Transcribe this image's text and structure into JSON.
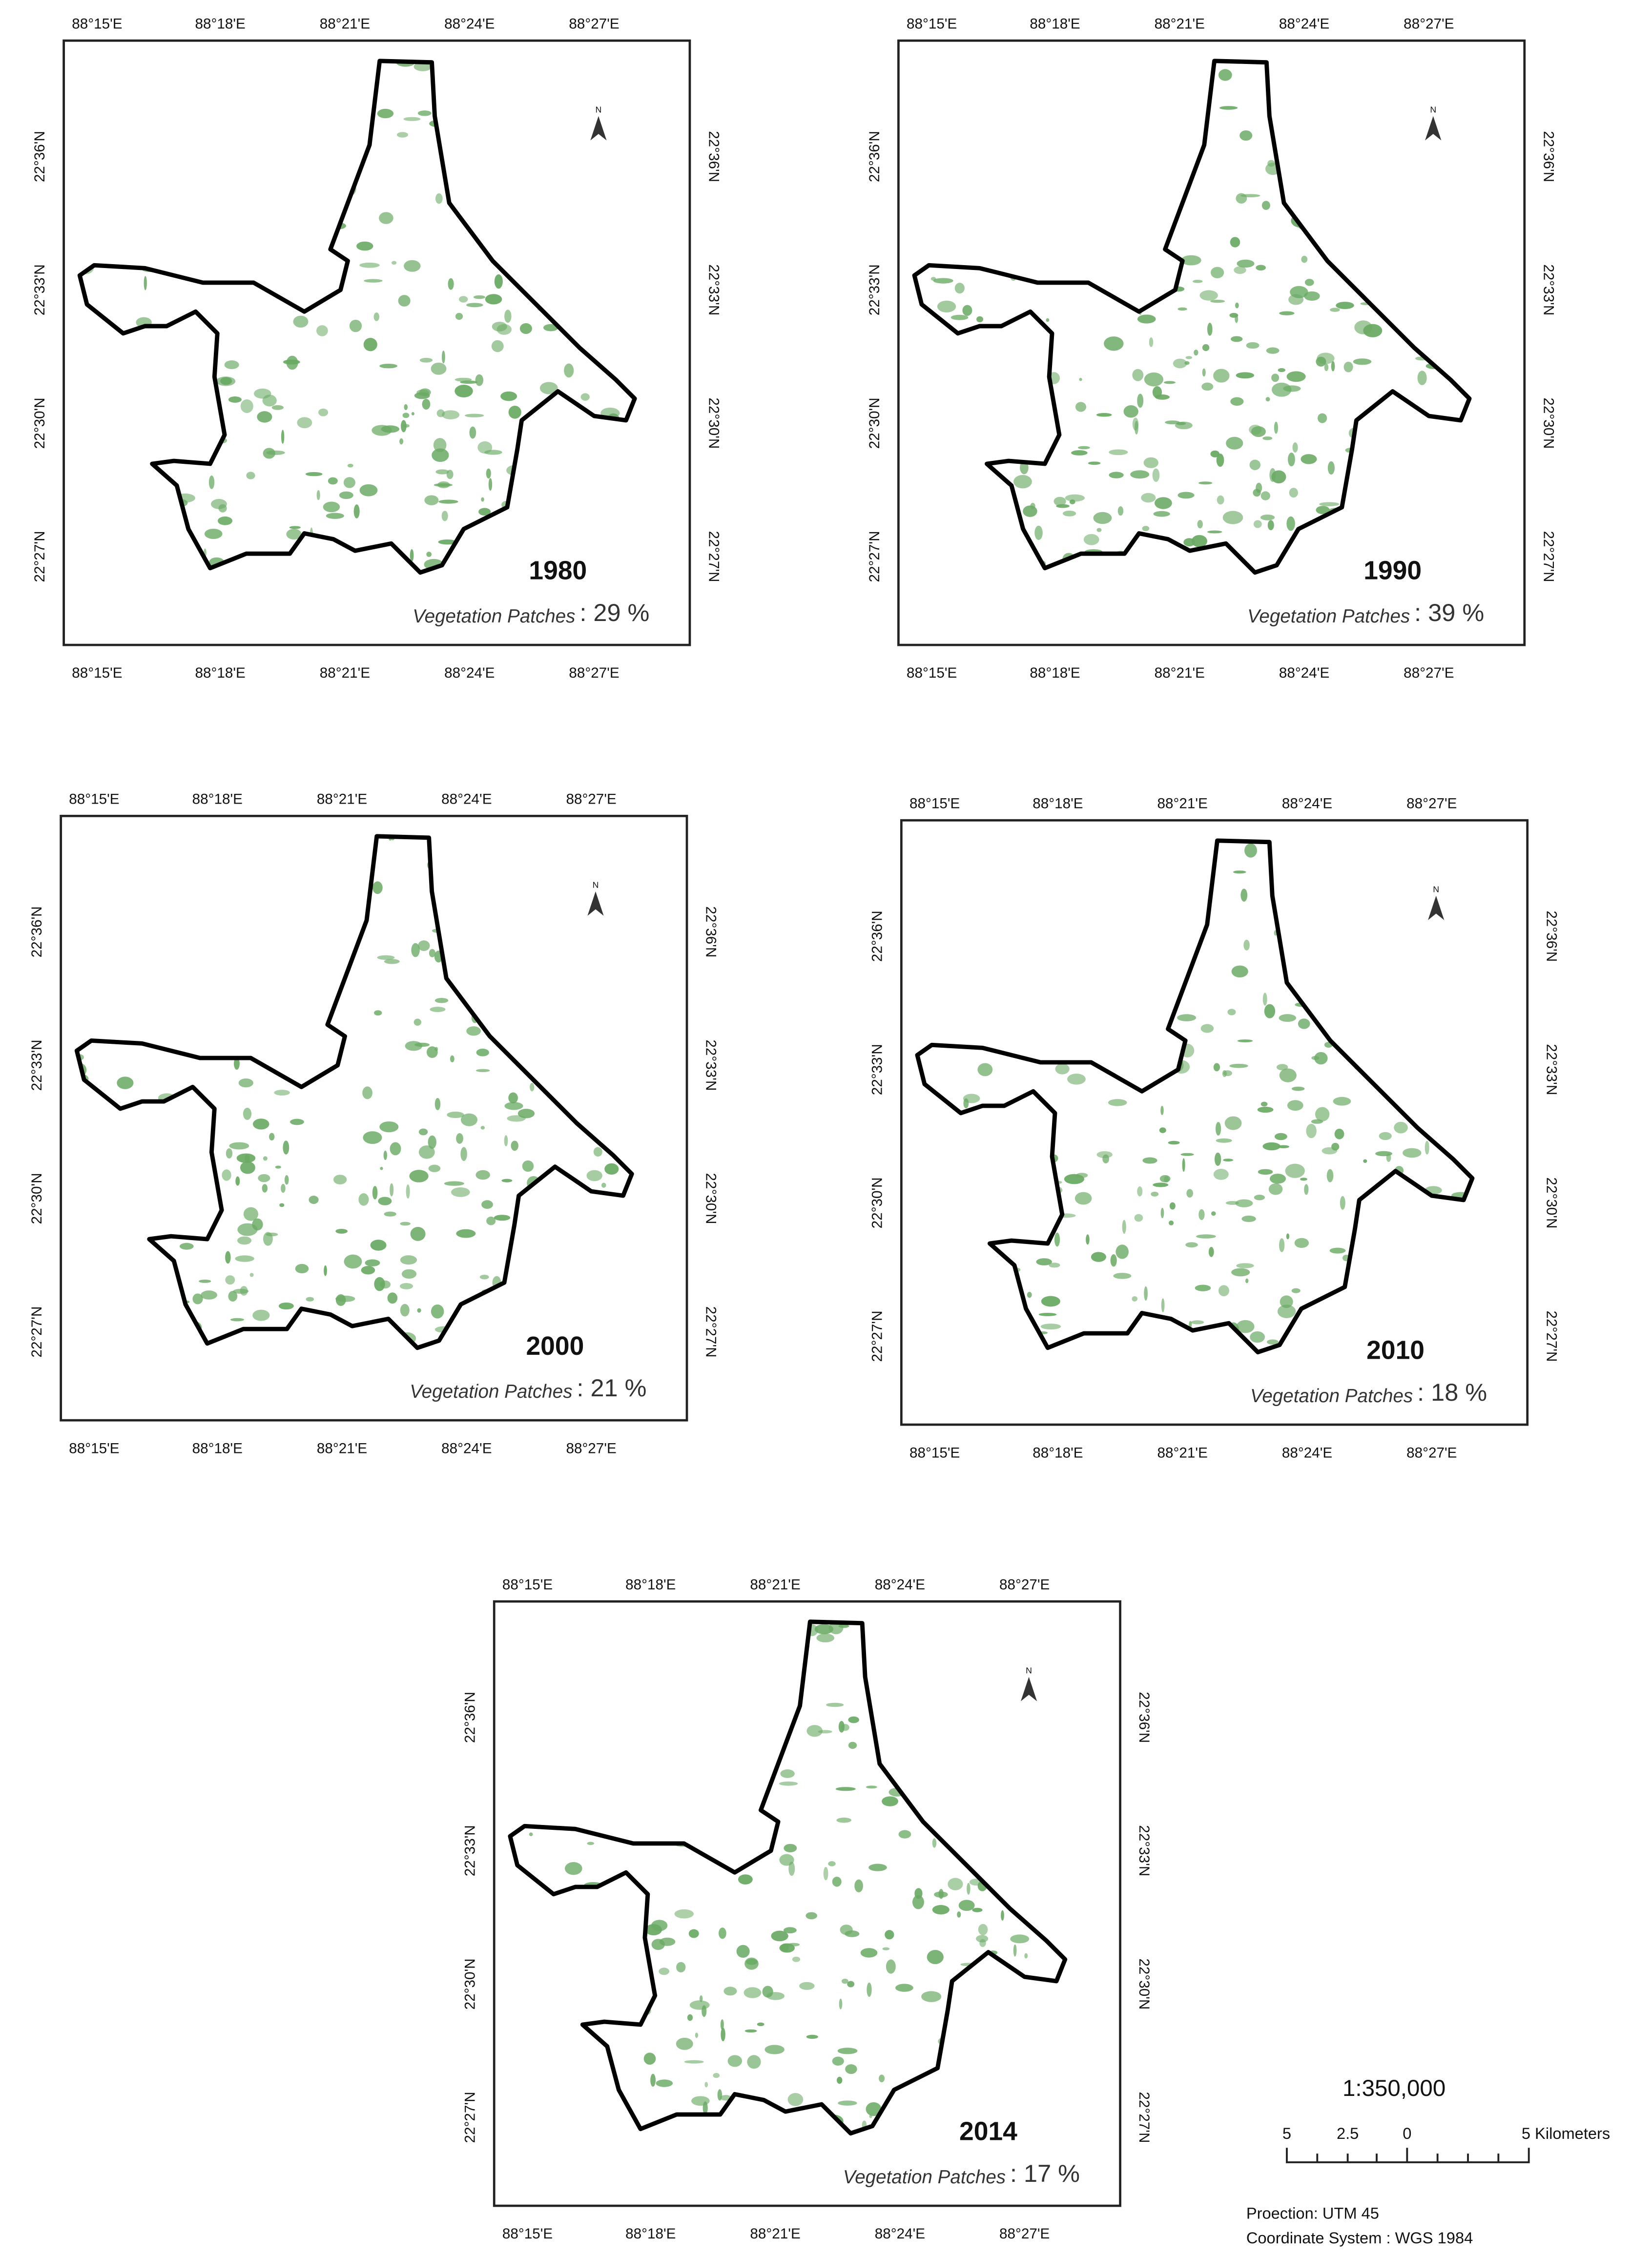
{
  "axes": {
    "longitudes": [
      "88°15'E",
      "88°18'E",
      "88°21'E",
      "88°24'E",
      "88°27'E"
    ],
    "latitudes": [
      "22°27'N",
      "22°30'N",
      "22°33'N",
      "22°36'N"
    ]
  },
  "north_label": "N",
  "maps": [
    {
      "year": "1980",
      "vegetation_label": "Vegetation Patches",
      "vegetation_value": ": 29 %"
    },
    {
      "year": "1990",
      "vegetation_label": "Vegetation Patches",
      "vegetation_value": ": 39 %"
    },
    {
      "year": "2000",
      "vegetation_label": "Vegetation Patches",
      "vegetation_value": ": 21 %"
    },
    {
      "year": "2010",
      "vegetation_label": "Vegetation Patches",
      "vegetation_value": ": 18 %"
    },
    {
      "year": "2014",
      "vegetation_label": "Vegetation Patches",
      "vegetation_value": ": 17 %"
    }
  ],
  "scale": {
    "ratio": "1:350,000",
    "labels": [
      "5",
      "2.5",
      "0",
      "5 Kilometers"
    ]
  },
  "notes": [
    "Proection: UTM 45",
    "Coordinate System : WGS 1984"
  ]
}
